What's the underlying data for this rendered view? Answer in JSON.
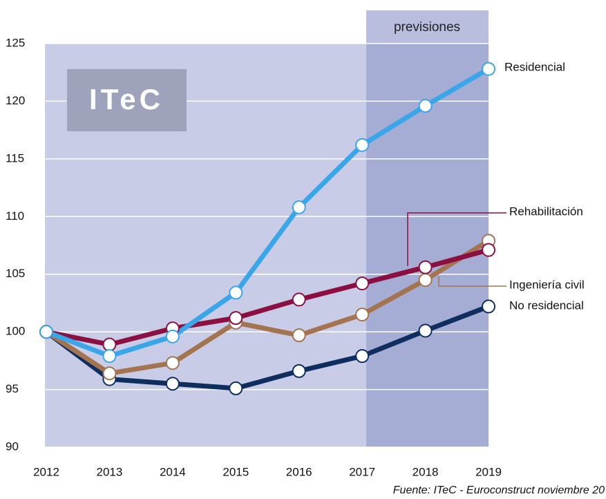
{
  "chart_data": {
    "type": "line",
    "categories": [
      "2012",
      "2013",
      "2014",
      "2015",
      "2016",
      "2017",
      "2018",
      "2019"
    ],
    "series": [
      {
        "name": "Residencial",
        "color": "#3aa6ea",
        "values": [
          100,
          97.9,
          99.6,
          103.4,
          110.8,
          116.2,
          119.6,
          122.8
        ]
      },
      {
        "name": "Rehabilitación",
        "color": "#8b0f40",
        "values": [
          100,
          98.9,
          100.3,
          101.2,
          102.8,
          104.2,
          105.6,
          107.1
        ]
      },
      {
        "name": "Ingeniería civil",
        "color": "#a47350",
        "values": [
          100,
          96.4,
          97.3,
          100.8,
          99.7,
          101.5,
          104.5,
          107.9
        ]
      },
      {
        "name": "No residencial",
        "color": "#0d2e5e",
        "values": [
          100,
          95.9,
          95.5,
          95.1,
          96.6,
          97.9,
          100.1,
          102.2
        ]
      }
    ],
    "ylim": [
      90,
      125
    ],
    "yticks": [
      90,
      95,
      100,
      105,
      110,
      115,
      120,
      125
    ],
    "grid": true,
    "annotations": [
      "previsiones",
      "ITeC"
    ],
    "source": "Fuente: ITeC - Euroconstruct noviembre 20"
  }
}
